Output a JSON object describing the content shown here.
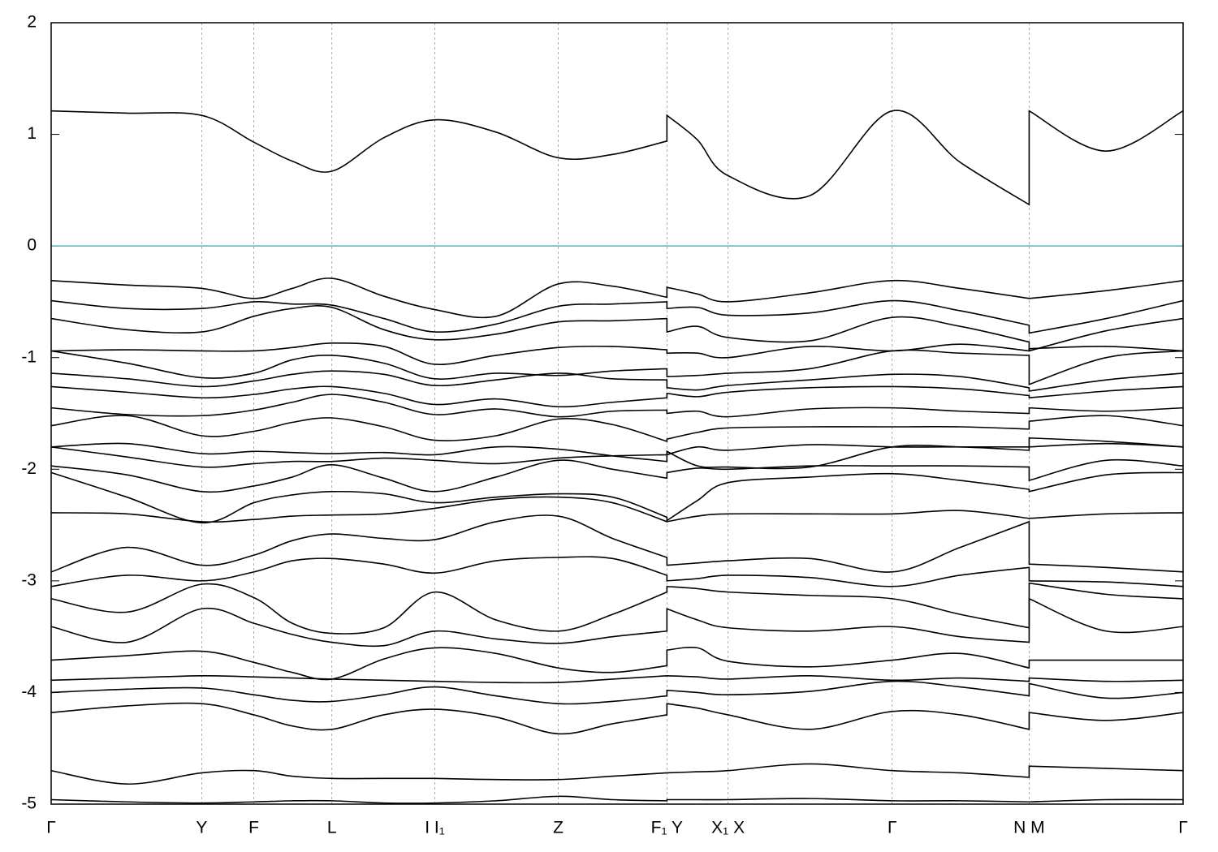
{
  "chart_data": {
    "type": "line",
    "color": "#000000",
    "hline": {
      "value": 0,
      "color": "#5ab4c8"
    },
    "grid": true,
    "xlim": [
      0,
      10
    ],
    "xticks": [
      {
        "value": 0,
        "label": "Γ"
      },
      {
        "value": 1.33,
        "label": "Y"
      },
      {
        "value": 1.79,
        "label": "F"
      },
      {
        "value": 2.48,
        "label": "L"
      },
      {
        "value": 3.39,
        "label": "I  I₁"
      },
      {
        "value": 4.48,
        "label": "Z"
      },
      {
        "value": 5.44,
        "label": "F₁ Y"
      },
      {
        "value": 5.98,
        "label": "X₁ X"
      },
      {
        "value": 7.43,
        "label": "Γ"
      },
      {
        "value": 8.64,
        "label": "N M"
      },
      {
        "value": 10,
        "label": "Γ"
      }
    ],
    "ylim": [
      -5,
      2
    ],
    "yticks": [
      -5,
      -4,
      -3,
      -2,
      -1,
      0,
      1,
      2
    ],
    "x": [
      0,
      0.67,
      1.33,
      1.79,
      2.13,
      2.48,
      2.94,
      3.39,
      3.93,
      4.48,
      4.96,
      5.44,
      5.44,
      5.71,
      5.98,
      6.7,
      7.43,
      8.03,
      8.64,
      8.64,
      9.32,
      10
    ],
    "series": [
      {
        "values": [
          1.21,
          1.19,
          1.17,
          0.93,
          0.76,
          0.67,
          0.97,
          1.13,
          1.02,
          0.79,
          0.82,
          0.94,
          1.17,
          0.95,
          0.63,
          0.45,
          1.21,
          0.75,
          0.37,
          1.21,
          0.85,
          1.21
        ]
      },
      {
        "values": [
          -0.31,
          -0.35,
          -0.38,
          -0.47,
          -0.38,
          -0.29,
          -0.45,
          -0.57,
          -0.63,
          -0.34,
          -0.36,
          -0.46,
          -0.37,
          -0.43,
          -0.5,
          -0.42,
          -0.31,
          -0.38,
          -0.47,
          -0.47,
          -0.4,
          -0.31
        ]
      },
      {
        "values": [
          -0.49,
          -0.56,
          -0.56,
          -0.5,
          -0.52,
          -0.53,
          -0.65,
          -0.77,
          -0.7,
          -0.54,
          -0.52,
          -0.5,
          -0.56,
          -0.55,
          -0.62,
          -0.6,
          -0.49,
          -0.58,
          -0.71,
          -0.78,
          -0.65,
          -0.49
        ]
      },
      {
        "values": [
          -0.65,
          -0.75,
          -0.77,
          -0.63,
          -0.56,
          -0.55,
          -0.75,
          -0.84,
          -0.79,
          -0.68,
          -0.67,
          -0.65,
          -0.77,
          -0.72,
          -0.82,
          -0.85,
          -0.64,
          -0.72,
          -0.86,
          -0.94,
          -0.76,
          -0.65
        ]
      },
      {
        "values": [
          -0.94,
          -0.93,
          -0.94,
          -0.94,
          -0.91,
          -0.87,
          -0.9,
          -1.06,
          -0.98,
          -0.91,
          -0.9,
          -0.93,
          -0.96,
          -0.96,
          -1.0,
          -0.9,
          -0.94,
          -0.88,
          -0.94,
          -0.92,
          -0.9,
          -0.94
        ]
      },
      {
        "values": [
          -0.94,
          -1.05,
          -1.18,
          -1.14,
          -1.02,
          -0.98,
          -1.05,
          -1.19,
          -1.14,
          -1.16,
          -1.12,
          -1.1,
          -1.17,
          -1.16,
          -1.14,
          -1.1,
          -0.94,
          -0.96,
          -0.98,
          -1.24,
          -1.0,
          -0.94
        ]
      },
      {
        "values": [
          -1.14,
          -1.19,
          -1.26,
          -1.21,
          -1.15,
          -1.12,
          -1.15,
          -1.25,
          -1.2,
          -1.14,
          -1.19,
          -1.2,
          -1.27,
          -1.29,
          -1.25,
          -1.2,
          -1.15,
          -1.17,
          -1.27,
          -1.3,
          -1.2,
          -1.14
        ]
      },
      {
        "values": [
          -1.26,
          -1.31,
          -1.36,
          -1.33,
          -1.28,
          -1.26,
          -1.32,
          -1.42,
          -1.37,
          -1.44,
          -1.4,
          -1.36,
          -1.32,
          -1.35,
          -1.31,
          -1.27,
          -1.26,
          -1.28,
          -1.34,
          -1.36,
          -1.3,
          -1.26
        ]
      },
      {
        "values": [
          -1.45,
          -1.51,
          -1.52,
          -1.47,
          -1.4,
          -1.33,
          -1.4,
          -1.51,
          -1.46,
          -1.53,
          -1.48,
          -1.47,
          -1.5,
          -1.48,
          -1.53,
          -1.46,
          -1.45,
          -1.48,
          -1.5,
          -1.45,
          -1.48,
          -1.45
        ]
      },
      {
        "values": [
          -1.61,
          -1.52,
          -1.7,
          -1.66,
          -1.58,
          -1.54,
          -1.62,
          -1.74,
          -1.7,
          -1.55,
          -1.6,
          -1.75,
          -1.73,
          -1.67,
          -1.63,
          -1.62,
          -1.62,
          -1.62,
          -1.64,
          -1.57,
          -1.52,
          -1.61
        ]
      },
      {
        "values": [
          -1.8,
          -1.77,
          -1.86,
          -1.84,
          -1.85,
          -1.86,
          -1.85,
          -1.87,
          -1.8,
          -1.82,
          -1.88,
          -1.93,
          -1.87,
          -1.8,
          -1.83,
          -1.78,
          -1.8,
          -1.8,
          -1.8,
          -1.72,
          -1.75,
          -1.8
        ]
      },
      {
        "values": [
          -1.8,
          -1.89,
          -1.98,
          -1.95,
          -1.93,
          -1.93,
          -1.9,
          -1.92,
          -1.95,
          -1.9,
          -1.88,
          -1.87,
          -1.84,
          -1.97,
          -1.98,
          -1.98,
          -1.8,
          -1.8,
          -1.83,
          -1.8,
          -1.77,
          -1.8
        ]
      },
      {
        "values": [
          -1.97,
          -2.05,
          -2.2,
          -2.15,
          -2.07,
          -1.96,
          -2.08,
          -2.2,
          -2.07,
          -1.92,
          -2.0,
          -2.08,
          -2.03,
          -1.99,
          -2.0,
          -1.97,
          -1.97,
          -1.97,
          -1.98,
          -2.1,
          -1.92,
          -1.97
        ]
      },
      {
        "values": [
          -2.03,
          -2.25,
          -2.48,
          -2.3,
          -2.23,
          -2.2,
          -2.22,
          -2.3,
          -2.25,
          -2.22,
          -2.25,
          -2.43,
          -2.46,
          -2.28,
          -2.12,
          -2.07,
          -2.04,
          -2.1,
          -2.18,
          -2.2,
          -2.05,
          -2.03
        ]
      },
      {
        "values": [
          -2.39,
          -2.4,
          -2.47,
          -2.45,
          -2.42,
          -2.41,
          -2.4,
          -2.35,
          -2.27,
          -2.25,
          -2.3,
          -2.47,
          -2.47,
          -2.42,
          -2.4,
          -2.4,
          -2.4,
          -2.37,
          -2.44,
          -2.44,
          -2.4,
          -2.39
        ]
      },
      {
        "values": [
          -2.92,
          -2.7,
          -2.86,
          -2.77,
          -2.64,
          -2.58,
          -2.62,
          -2.63,
          -2.47,
          -2.42,
          -2.62,
          -2.79,
          -2.86,
          -2.84,
          -2.82,
          -2.8,
          -2.92,
          -2.7,
          -2.47,
          -2.85,
          -2.88,
          -2.92
        ]
      },
      {
        "values": [
          -3.05,
          -2.95,
          -3.0,
          -2.92,
          -2.82,
          -2.8,
          -2.85,
          -2.93,
          -2.82,
          -2.79,
          -2.8,
          -2.95,
          -3.0,
          -2.98,
          -2.95,
          -2.97,
          -3.05,
          -2.95,
          -2.88,
          -3.0,
          -3.01,
          -3.05
        ]
      },
      {
        "values": [
          -3.16,
          -3.28,
          -3.03,
          -3.15,
          -3.38,
          -3.47,
          -3.42,
          -3.1,
          -3.35,
          -3.45,
          -3.3,
          -3.1,
          -3.05,
          -3.07,
          -3.1,
          -3.13,
          -3.16,
          -3.3,
          -3.42,
          -3.02,
          -3.12,
          -3.16
        ]
      },
      {
        "values": [
          -3.41,
          -3.55,
          -3.25,
          -3.38,
          -3.48,
          -3.55,
          -3.58,
          -3.45,
          -3.52,
          -3.56,
          -3.5,
          -3.45,
          -3.25,
          -3.35,
          -3.42,
          -3.45,
          -3.41,
          -3.5,
          -3.55,
          -3.16,
          -3.45,
          -3.41
        ]
      },
      {
        "values": [
          -3.71,
          -3.67,
          -3.63,
          -3.73,
          -3.82,
          -3.88,
          -3.7,
          -3.6,
          -3.65,
          -3.78,
          -3.82,
          -3.76,
          -3.62,
          -3.6,
          -3.72,
          -3.77,
          -3.71,
          -3.65,
          -3.78,
          -3.71,
          -3.71,
          -3.71
        ]
      },
      {
        "values": [
          -3.89,
          -3.87,
          -3.85,
          -3.86,
          -3.87,
          -3.88,
          -3.89,
          -3.9,
          -3.91,
          -3.91,
          -3.88,
          -3.85,
          -3.85,
          -3.86,
          -3.88,
          -3.85,
          -3.89,
          -3.87,
          -3.9,
          -3.87,
          -3.9,
          -3.89
        ]
      },
      {
        "values": [
          -4.0,
          -3.97,
          -3.96,
          -4.02,
          -4.07,
          -4.08,
          -4.02,
          -3.95,
          -4.03,
          -4.1,
          -4.08,
          -4.03,
          -3.98,
          -4.0,
          -4.02,
          -3.99,
          -3.9,
          -3.95,
          -4.03,
          -3.92,
          -4.05,
          -4.0
        ]
      },
      {
        "values": [
          -4.18,
          -4.12,
          -4.1,
          -4.2,
          -4.3,
          -4.33,
          -4.2,
          -4.15,
          -4.22,
          -4.37,
          -4.28,
          -4.2,
          -4.1,
          -4.14,
          -4.2,
          -4.33,
          -4.17,
          -4.2,
          -4.33,
          -4.18,
          -4.25,
          -4.18
        ]
      },
      {
        "values": [
          -4.7,
          -4.82,
          -4.72,
          -4.7,
          -4.75,
          -4.77,
          -4.77,
          -4.77,
          -4.78,
          -4.78,
          -4.75,
          -4.72,
          -4.72,
          -4.71,
          -4.7,
          -4.64,
          -4.7,
          -4.72,
          -4.76,
          -4.66,
          -4.68,
          -4.7
        ]
      },
      {
        "values": [
          -4.96,
          -4.98,
          -4.99,
          -4.98,
          -4.97,
          -4.97,
          -4.99,
          -4.99,
          -4.97,
          -4.93,
          -4.96,
          -4.97,
          -4.96,
          -4.96,
          -4.96,
          -4.95,
          -4.97,
          -4.97,
          -4.98,
          -4.98,
          -4.96,
          -4.96
        ]
      }
    ]
  }
}
